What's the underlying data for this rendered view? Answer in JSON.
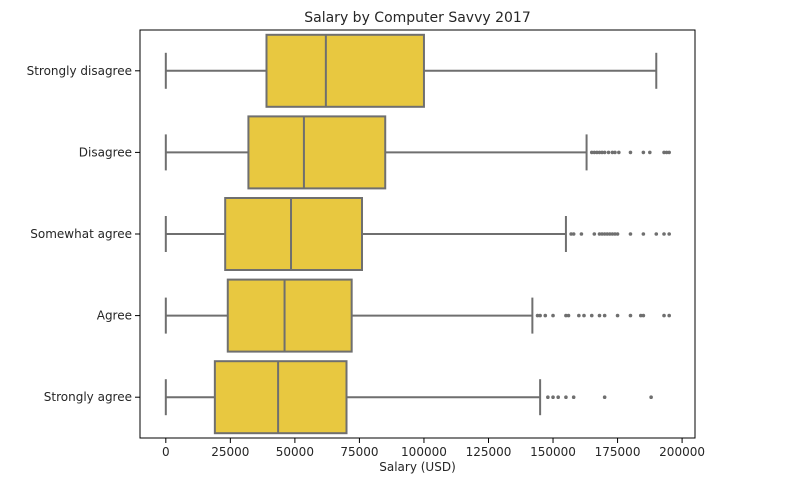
{
  "chart_data": {
    "type": "boxplot",
    "orientation": "horizontal",
    "title": "Salary by Computer Savvy 2017",
    "xlabel": "Salary (USD)",
    "ylabel": "",
    "xlim": [
      -10000,
      205000
    ],
    "xticks": [
      0,
      25000,
      50000,
      75000,
      100000,
      125000,
      150000,
      175000,
      200000
    ],
    "xtick_labels": [
      "0",
      "25000",
      "50000",
      "75000",
      "100000",
      "125000",
      "150000",
      "175000",
      "200000"
    ],
    "grid": false,
    "legend": "none",
    "box_color": "#e8c840",
    "line_color": "#6f6f6f",
    "categories": [
      "Strongly disagree",
      "Disagree",
      "Somewhat agree",
      "Agree",
      "Strongly agree"
    ],
    "boxes": [
      {
        "category": "Strongly disagree",
        "whisker_low": 0,
        "q1": 39000,
        "median": 62000,
        "q3": 100000,
        "whisker_high": 190000,
        "outliers": []
      },
      {
        "category": "Disagree",
        "whisker_low": 0,
        "q1": 32000,
        "median": 53500,
        "q3": 85000,
        "whisker_high": 163000,
        "outliers": [
          165000,
          166000,
          167000,
          168000,
          169000,
          170000,
          171500,
          173000,
          174000,
          175500,
          180000,
          185000,
          187500,
          193000,
          194000,
          195000
        ]
      },
      {
        "category": "Somewhat agree",
        "whisker_low": 0,
        "q1": 23000,
        "median": 48500,
        "q3": 76000,
        "whisker_high": 155000,
        "outliers": [
          157000,
          158000,
          161000,
          166000,
          168000,
          169000,
          170000,
          171000,
          172000,
          173000,
          174000,
          175000,
          180000,
          185000,
          190000,
          193000,
          195000
        ]
      },
      {
        "category": "Agree",
        "whisker_low": 0,
        "q1": 24000,
        "median": 46000,
        "q3": 72000,
        "whisker_high": 142000,
        "outliers": [
          144000,
          145000,
          147000,
          150000,
          155000,
          156000,
          160000,
          162000,
          165000,
          168000,
          170000,
          175000,
          180000,
          184000,
          185000,
          193000,
          195000
        ]
      },
      {
        "category": "Strongly agree",
        "whisker_low": 0,
        "q1": 19000,
        "median": 43500,
        "q3": 70000,
        "whisker_high": 145000,
        "outliers": [
          148000,
          150000,
          152000,
          155000,
          158000,
          170000,
          188000
        ]
      }
    ]
  }
}
